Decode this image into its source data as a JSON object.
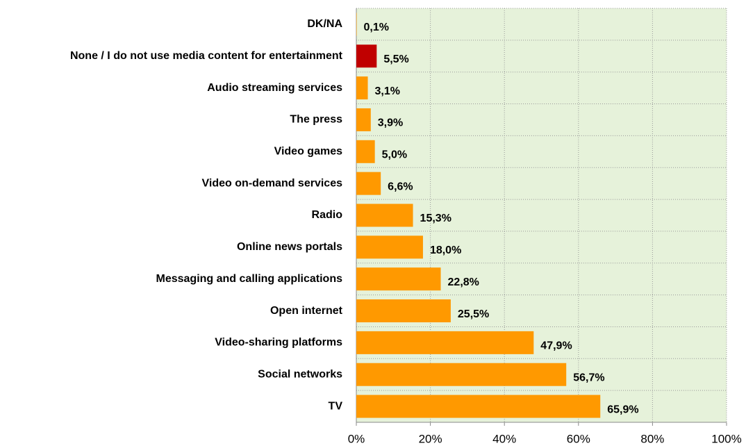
{
  "chart_data": {
    "type": "barh",
    "categories": [
      "DK/NA",
      "None / I do not use media content for entertainment",
      "Audio streaming services",
      "The press",
      "Video games",
      "Video on-demand services",
      "Radio",
      "Online news portals",
      "Messaging and calling applications",
      "Open internet",
      "Video-sharing platforms",
      "Social networks",
      "TV"
    ],
    "values": [
      0.1,
      5.5,
      3.1,
      3.9,
      5.0,
      6.6,
      15.3,
      18.0,
      22.8,
      25.5,
      47.9,
      56.7,
      65.9
    ],
    "value_labels": [
      "0,1%",
      "5,5%",
      "3,1%",
      "3,9%",
      "5,0%",
      "6,6%",
      "15,3%",
      "18,0%",
      "22,8%",
      "25,5%",
      "47,9%",
      "56,7%",
      "65,9%"
    ],
    "colors": [
      "#ff9900",
      "#c00000",
      "#ff9900",
      "#ff9900",
      "#ff9900",
      "#ff9900",
      "#ff9900",
      "#ff9900",
      "#ff9900",
      "#ff9900",
      "#ff9900",
      "#ff9900",
      "#ff9900"
    ],
    "xlim": [
      0,
      100
    ],
    "xticks": [
      {
        "value": 0,
        "label": "0%"
      },
      {
        "value": 20,
        "label": "20%"
      },
      {
        "value": 40,
        "label": "40%"
      },
      {
        "value": 60,
        "label": "60%"
      },
      {
        "value": 80,
        "label": "80%"
      },
      {
        "value": 100,
        "label": "100%"
      }
    ],
    "grid": true
  }
}
